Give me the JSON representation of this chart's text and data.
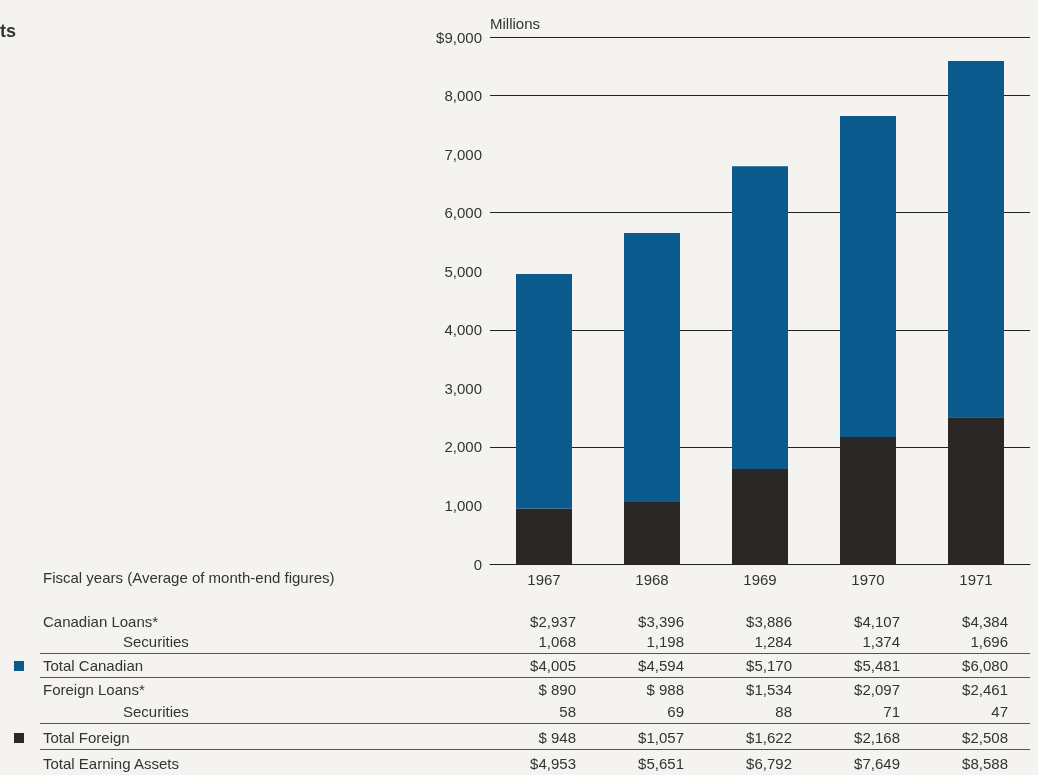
{
  "chart_data": {
    "type": "bar",
    "title": "ts",
    "ylabel": "Millions",
    "categories": [
      "1967",
      "1968",
      "1969",
      "1970",
      "1971"
    ],
    "stacked": true,
    "series": [
      {
        "name": "Total Foreign",
        "color": "#2b2726",
        "values": [
          948,
          1057,
          1622,
          2168,
          2508
        ],
        "value_labels": [
          "$ 948",
          "$1,057",
          "$1,622",
          "$2,168",
          "$2,508"
        ]
      },
      {
        "name": "Total Canadian",
        "color": "#0b5a8e",
        "values": [
          4005,
          4594,
          5170,
          5481,
          6080
        ],
        "value_labels": [
          "$4,005",
          "$4,594",
          "$5,170",
          "$5,481",
          "$6,080"
        ]
      }
    ],
    "ylim": [
      0,
      9000
    ],
    "yticks": [
      0,
      {
        "value": 1000,
        "label": "1,000"
      },
      {
        "value": 2000,
        "label": "2,000"
      },
      {
        "value": 3000,
        "label": "3,000"
      },
      {
        "value": 4000,
        "label": "4,000"
      },
      {
        "value": 5000,
        "label": "5,000"
      },
      {
        "value": 6000,
        "label": "6,000"
      },
      {
        "value": 7000,
        "label": "7,000"
      },
      {
        "value": 8000,
        "label": "8,000"
      },
      {
        "value": 9000,
        "label": "$9,000"
      }
    ],
    "grid": "y",
    "legend": "bottom left",
    "annotations": [
      "Canadian Loans*",
      "$2,937",
      "$3,396",
      "$3,886",
      "$4,107",
      "$4,384",
      "Securities",
      "1,068",
      "1,198",
      "1,284",
      "1,374",
      "1,696",
      "Foreign Loans*",
      "$ 890",
      "$ 988",
      "$1,534",
      "$2,097",
      "$2,461",
      "Securities",
      "58",
      "69",
      "88",
      "71",
      "47",
      "Total Earning Assets",
      "$4,953",
      "$5,651",
      "$6,792",
      "$7,649",
      "$8,588",
      "Fiscal years (Average of month-end figures)"
    ]
  }
}
